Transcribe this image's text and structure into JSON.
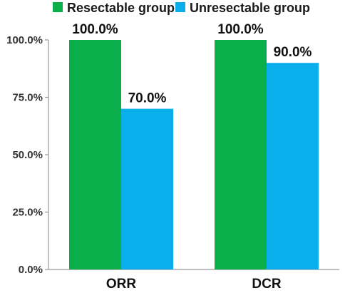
{
  "chart_data": {
    "type": "bar",
    "categories": [
      "ORR",
      "DCR"
    ],
    "series": [
      {
        "name": "Resectable group",
        "values": [
          100.0,
          100.0
        ],
        "color": "#0aaf4b"
      },
      {
        "name": "Unresectable group",
        "values": [
          70.0,
          90.0
        ],
        "color": "#0aaeea"
      }
    ],
    "value_labels": [
      [
        "100.0%",
        "100.0%"
      ],
      [
        "70.0%",
        "90.0%"
      ]
    ],
    "ylim": [
      0,
      100
    ],
    "yticks": [
      0,
      25,
      50,
      75,
      100
    ],
    "ytick_labels": [
      "0.0%",
      "25.0%",
      "50.0%",
      "75.0%",
      "100.0%"
    ],
    "title": "",
    "xlabel": "",
    "ylabel": "",
    "legend_position": "top",
    "grid": false
  }
}
